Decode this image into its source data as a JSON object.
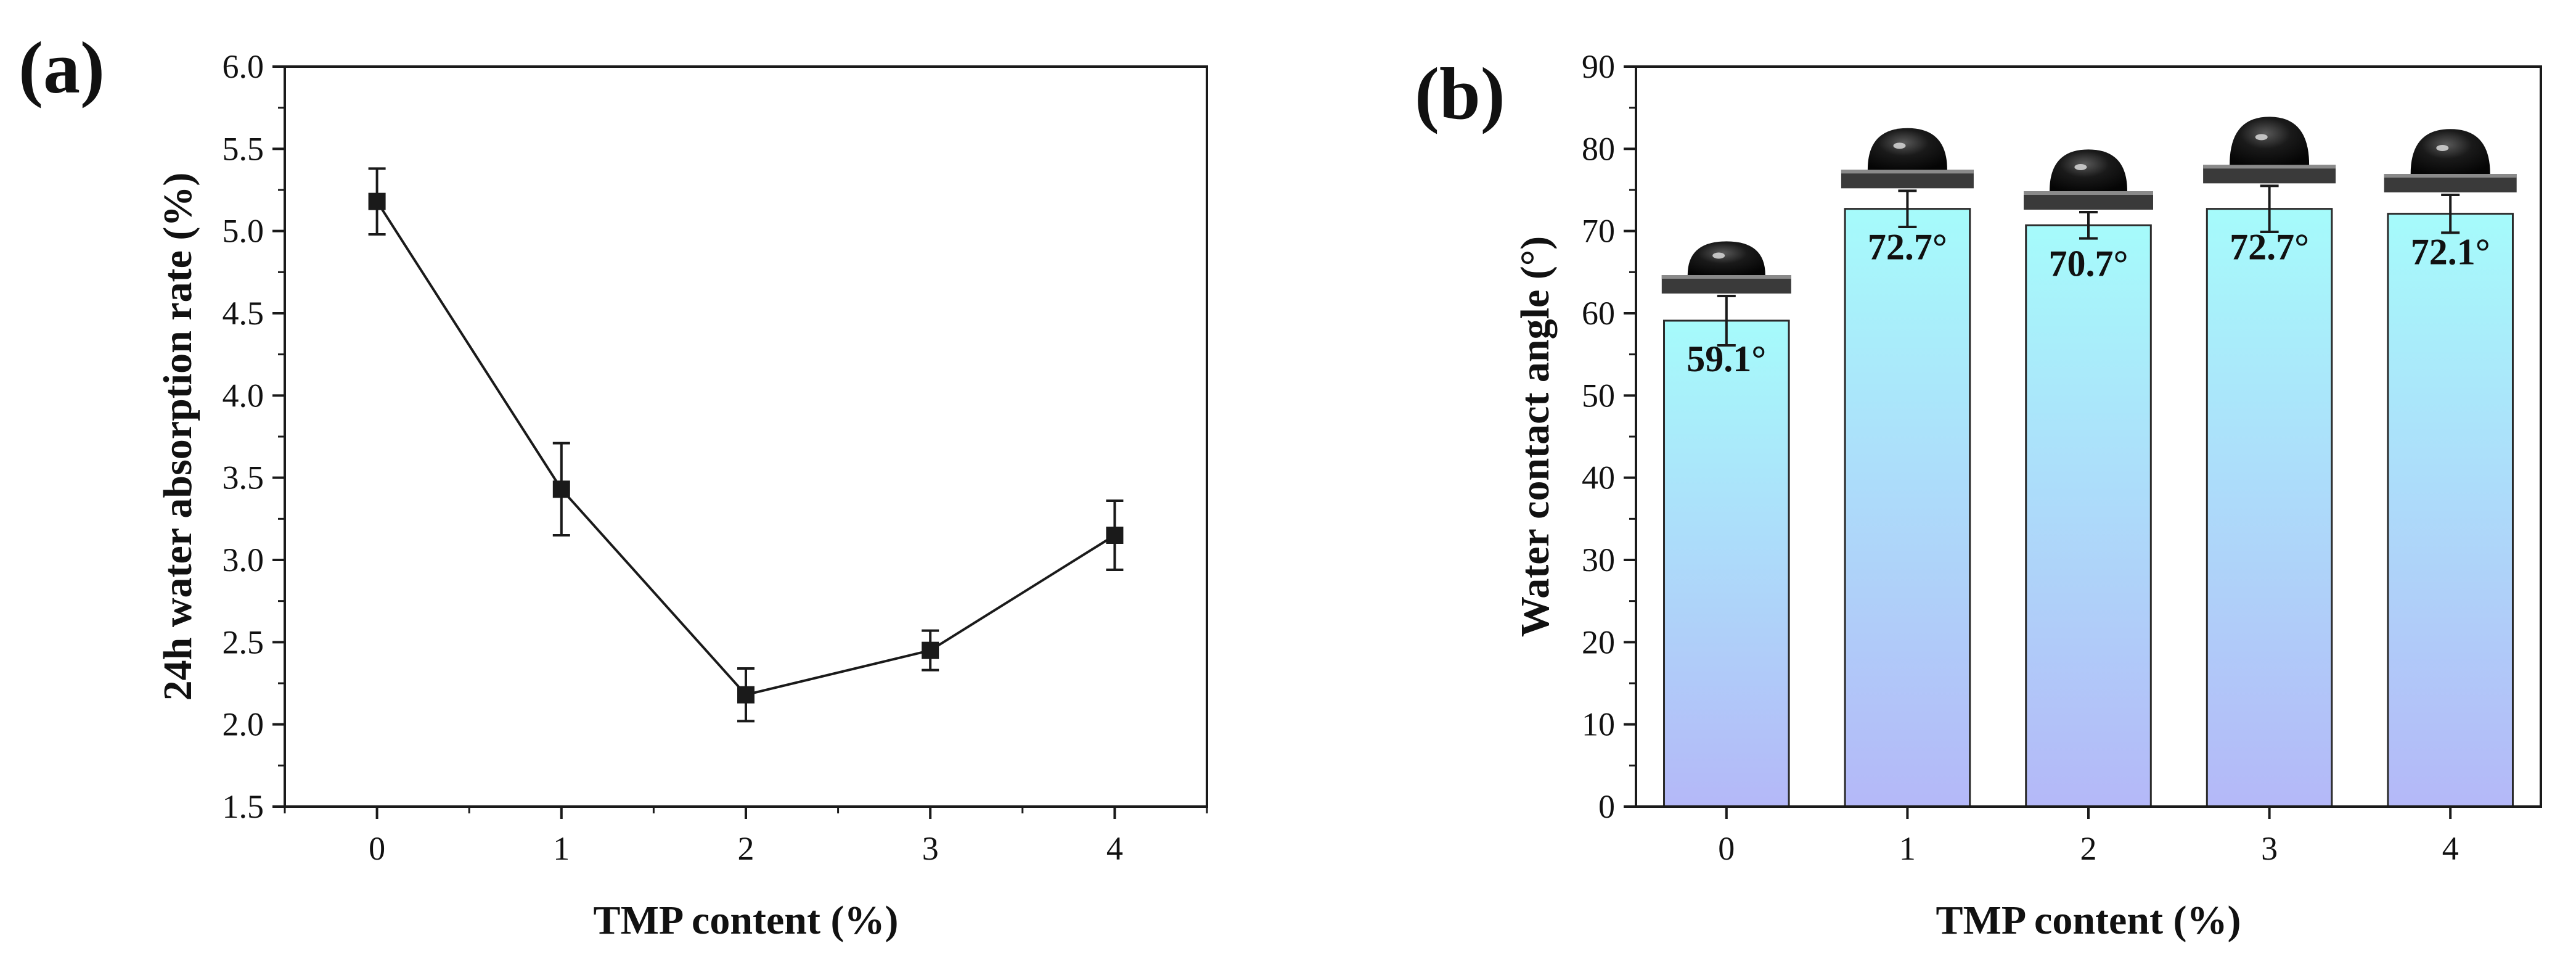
{
  "colors": {
    "line": "#1a1a1a",
    "bar_top": "#a6fbfb",
    "bar_bottom": "#b4b8f8",
    "bar_stroke": "#2a2a2a",
    "droplet": "#111111",
    "substrate": "#3a3a3a"
  },
  "chart_data": [
    {
      "panel": "(a)",
      "type": "line",
      "marker": "square",
      "xlabel": "TMP content (%)",
      "ylabel": "24h water absorption rate (%)",
      "x": [
        0,
        1,
        2,
        3,
        4
      ],
      "y": [
        5.18,
        3.43,
        2.18,
        2.45,
        3.15
      ],
      "err": [
        0.2,
        0.28,
        0.16,
        0.12,
        0.21
      ],
      "xlim": [
        -0.5,
        4.5
      ],
      "ylim": [
        1.5,
        6.0
      ],
      "xticks": [
        "0",
        "1",
        "2",
        "3",
        "4"
      ],
      "yticks": [
        "1.5",
        "2.0",
        "2.5",
        "3.0",
        "3.5",
        "4.0",
        "4.5",
        "5.0",
        "5.5",
        "6.0"
      ],
      "grid": false,
      "legend": "none"
    },
    {
      "panel": "(b)",
      "type": "bar",
      "xlabel": "TMP content (%)",
      "ylabel": "Water contact angle (°)",
      "categories": [
        "0",
        "1",
        "2",
        "3",
        "4"
      ],
      "values": [
        59.1,
        72.7,
        70.7,
        72.7,
        72.1
      ],
      "err": [
        3.0,
        2.2,
        1.6,
        2.8,
        2.3
      ],
      "bar_labels": [
        "59.1°",
        "72.7°",
        "70.7°",
        "72.7°",
        "72.1°"
      ],
      "xlim": [
        -0.5,
        4.5
      ],
      "ylim": [
        0,
        90
      ],
      "yticks": [
        "0",
        "10",
        "20",
        "30",
        "40",
        "50",
        "60",
        "70",
        "80",
        "90"
      ],
      "grid": false,
      "legend": "none",
      "annotations": "water droplet images above each bar"
    }
  ]
}
